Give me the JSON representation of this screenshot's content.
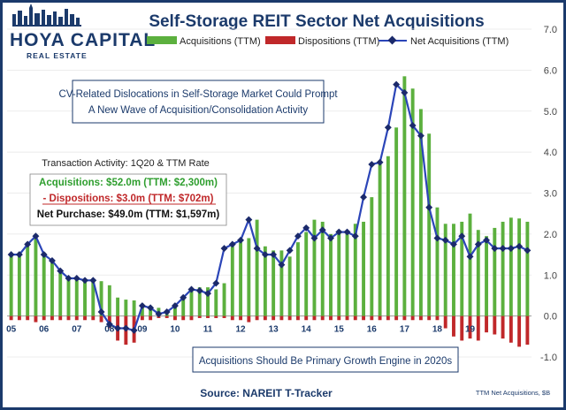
{
  "header": {
    "title": "Self-Storage REIT Sector Net Acquisitions",
    "logo_main": "HOYA CAPITAL",
    "logo_sub": "REAL ESTATE"
  },
  "legend": [
    {
      "label": "Acquisitions (TTM)",
      "color": "#5cb03e"
    },
    {
      "label": "Dispositions (TTM)",
      "color": "#c0282a"
    },
    {
      "label": "Net Acquisitions (TTM)",
      "color": "#2b45b8"
    }
  ],
  "annotations": {
    "top_box_line1": "CV-Related Dislocations in Self-Storage Market Could Prompt",
    "top_box_line2": "A New Wave of Acquisition/Consolidation Activity",
    "activity_heading": "Transaction Activity:  1Q20 &  TTM Rate",
    "activity_acq": "Acquisitions: $52.0m (TTM: $2,300m)",
    "activity_dis": "- Dispositions: $3.0m (TTM: $702m)",
    "activity_net": "Net Purchase: $49.0m (TTM: $1,597m)",
    "bottom_box": "Acquisitions Should Be Primary Growth Engine in 2020s",
    "source": "Source: NAREIT T-Tracker",
    "footnote": "TTM Net Acquisitions, $B"
  },
  "chart_data": {
    "type": "bar",
    "ylim": [
      -1.0,
      7.0
    ],
    "yticks": [
      "-1.0",
      "0.0",
      "1.0",
      "2.0",
      "3.0",
      "4.0",
      "5.0",
      "6.0",
      "7.0"
    ],
    "year_labels": [
      "05",
      "06",
      "07",
      "08",
      "09",
      "10",
      "11",
      "12",
      "13",
      "14",
      "15",
      "16",
      "17",
      "18",
      "19"
    ],
    "quarters_start": "2005 Q1",
    "series": [
      {
        "name": "Acquisitions (TTM)",
        "values": [
          1.5,
          1.55,
          1.8,
          2.0,
          1.55,
          1.3,
          1.05,
          0.95,
          0.9,
          0.9,
          0.88,
          0.85,
          0.75,
          0.45,
          0.4,
          0.38,
          0.3,
          0.25,
          0.2,
          0.05,
          0.3,
          0.45,
          0.6,
          0.7,
          0.7,
          0.65,
          0.8,
          1.7,
          1.8,
          1.9,
          2.35,
          1.7,
          1.6,
          1.6,
          1.45,
          1.8,
          2.05,
          2.35,
          2.3,
          2.0,
          2.1,
          2.05,
          2.25,
          2.3,
          2.9,
          3.7,
          3.9,
          4.6,
          5.85,
          5.55,
          5.05,
          4.45,
          2.65,
          2.25,
          2.25,
          2.3,
          2.5,
          2.1,
          1.95,
          2.15,
          2.3,
          2.4,
          2.38,
          2.3
        ]
      },
      {
        "name": "Dispositions (TTM)",
        "values": [
          -0.1,
          -0.1,
          -0.1,
          -0.15,
          -0.1,
          -0.1,
          -0.1,
          -0.1,
          -0.1,
          -0.1,
          -0.1,
          -0.15,
          -0.3,
          -0.6,
          -0.7,
          -0.65,
          -0.1,
          -0.1,
          -0.05,
          -0.05,
          -0.1,
          -0.1,
          -0.1,
          -0.05,
          -0.05,
          -0.05,
          -0.05,
          -0.1,
          -0.1,
          -0.15,
          -0.1,
          -0.1,
          -0.1,
          -0.1,
          -0.1,
          -0.1,
          -0.1,
          -0.1,
          -0.1,
          -0.1,
          -0.1,
          -0.1,
          -0.1,
          -0.1,
          -0.1,
          -0.1,
          -0.1,
          -0.1,
          -0.1,
          -0.1,
          -0.1,
          -0.1,
          -0.1,
          -0.3,
          -0.5,
          -0.6,
          -0.55,
          -0.6,
          -0.4,
          -0.45,
          -0.55,
          -0.65,
          -0.75,
          -0.7
        ]
      },
      {
        "name": "Net Acquisitions (TTM)",
        "values": [
          1.5,
          1.5,
          1.75,
          1.95,
          1.5,
          1.35,
          1.1,
          0.92,
          0.92,
          0.87,
          0.87,
          0.1,
          -0.2,
          -0.3,
          -0.3,
          -0.35,
          0.25,
          0.2,
          0.05,
          0.1,
          0.25,
          0.45,
          0.65,
          0.62,
          0.55,
          0.8,
          1.65,
          1.75,
          1.85,
          2.35,
          1.65,
          1.5,
          1.5,
          1.25,
          1.6,
          1.95,
          2.15,
          1.9,
          2.1,
          1.9,
          2.05,
          2.05,
          1.95,
          2.9,
          3.7,
          3.75,
          4.6,
          5.65,
          5.45,
          4.65,
          4.4,
          2.65,
          1.9,
          1.85,
          1.75,
          1.95,
          1.45,
          1.75,
          1.85,
          1.65,
          1.65,
          1.65,
          1.7,
          1.6
        ]
      }
    ]
  }
}
